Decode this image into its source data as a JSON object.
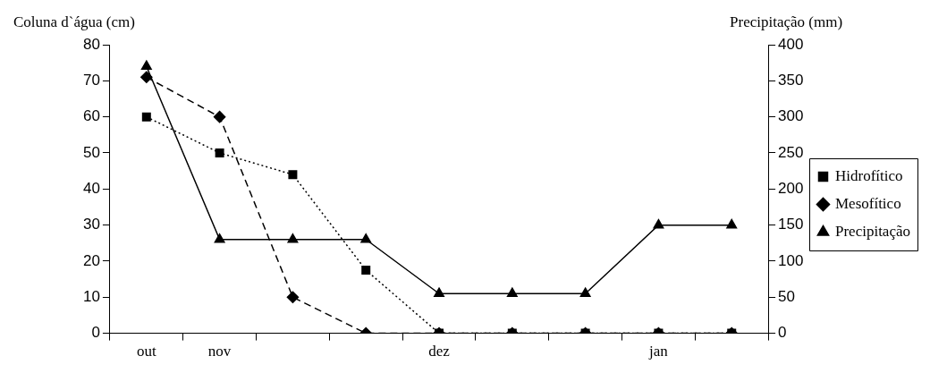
{
  "chart_data": {
    "type": "line",
    "xlabel": null,
    "ylabel": "Coluna d`água (cm)",
    "y2label": "Precipitação (mm)",
    "categories": [
      "out",
      "nov",
      null,
      null,
      "dez",
      null,
      null,
      "jan",
      null
    ],
    "series": [
      {
        "name": "Hidrofítico",
        "color": "#000000",
        "marker": "square",
        "line_style": "dotted",
        "values": [
          60,
          50,
          44,
          17.5,
          0,
          0,
          0,
          0,
          0
        ]
      },
      {
        "name": "Mesofítico",
        "color": "#000000",
        "marker": "diamond",
        "line_style": "dashed",
        "values": [
          71,
          60,
          10,
          0,
          0,
          0,
          0,
          0,
          0
        ]
      },
      {
        "name": "Precipitação",
        "color": "#000000",
        "marker": "triangle",
        "line_style": "solid",
        "axis": "y2",
        "values": [
          370,
          130,
          130,
          130,
          55,
          55,
          55,
          150,
          150
        ]
      }
    ],
    "ylim": [
      0,
      80
    ],
    "yticks": [
      0,
      10,
      20,
      30,
      40,
      50,
      60,
      70,
      80
    ],
    "y2lim": [
      0,
      400
    ],
    "y2ticks": [
      0,
      50,
      100,
      150,
      200,
      250,
      300,
      350,
      400
    ],
    "grid": false,
    "legend": "right"
  }
}
